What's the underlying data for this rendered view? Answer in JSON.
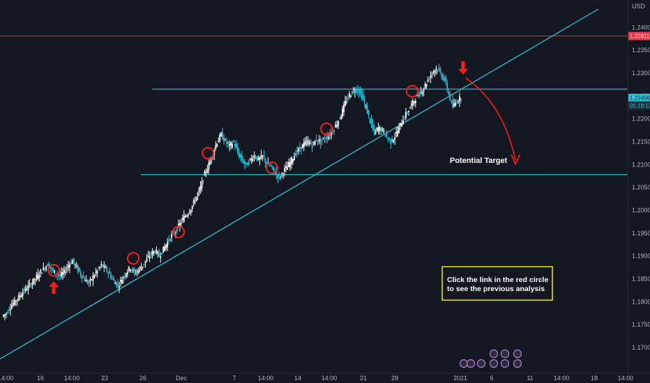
{
  "currency": "USD",
  "colors": {
    "background": "#131722",
    "up_candle": "#ffffff",
    "down_candle": "#26c6da",
    "trendline": "#26c6da",
    "resistance": "#ff1a1a",
    "marker": "#ff1a1a",
    "axis_text": "#b2b5be",
    "note_border": "#f4e41c"
  },
  "chart_data": {
    "type": "candlestick",
    "y_axis": {
      "position": "right",
      "range": [
        1.1665,
        1.244
      ],
      "ticks": [
        "1.24000",
        "1.23500",
        "1.23000",
        "1.22500",
        "1.22000",
        "1.21500",
        "1.21000",
        "1.20500",
        "1.20000",
        "1.19500",
        "1.19000",
        "1.18500",
        "1.18000",
        "1.17500",
        "1.17000"
      ]
    },
    "x_axis": {
      "ticks": [
        "14:00",
        "16",
        "14:00",
        "23",
        "26",
        "Dec",
        "7",
        "14:00",
        "14",
        "14:00",
        "21",
        "28",
        "2021",
        "6",
        "11",
        "14:00",
        "18",
        "14:00"
      ]
    },
    "grid": false,
    "price_labels": [
      {
        "text": "1.23811",
        "value": 1.23811,
        "bg": "#f23645",
        "fg": "#ffffff"
      },
      {
        "text": "1.22456",
        "value": 1.22456,
        "bg": "#26c6da",
        "fg": "#131722"
      },
      {
        "text": "01:18:13",
        "value": 1.2229,
        "bg": "#1e2d3a",
        "fg": "#26c6da"
      }
    ],
    "horizontal_lines": [
      {
        "name": "resistance",
        "value": 1.23811,
        "color": "#ff1a1a",
        "from_date": "chart-start"
      },
      {
        "name": "top-level",
        "value": 1.2265,
        "color": "#26c6da",
        "from_date": "Dec 9"
      },
      {
        "name": "target-level",
        "value": 1.2078,
        "color": "#26c6da",
        "from_date": "Nov 30"
      }
    ],
    "trendline": {
      "color": "#26c6da",
      "points": [
        [
          "chart-start",
          1.1675
        ],
        [
          "Jan 13",
          1.244
        ]
      ]
    },
    "annotations": {
      "target_label": "Potential Target",
      "note_lines": [
        "Click the link in the red circle",
        "to see the previous analysis"
      ]
    },
    "price_path": [
      1.1768,
      1.1775,
      1.179,
      1.18,
      1.181,
      1.1822,
      1.183,
      1.184,
      1.185,
      1.1862,
      1.1872,
      1.1882,
      1.187,
      1.1862,
      1.1856,
      1.1865,
      1.188,
      1.189,
      1.1875,
      1.186,
      1.1848,
      1.184,
      1.1855,
      1.1868,
      1.188,
      1.1872,
      1.186,
      1.1845,
      1.1835,
      1.185,
      1.1865,
      1.1875,
      1.1862,
      1.187,
      1.188,
      1.1893,
      1.1905,
      1.1912,
      1.19,
      1.1915,
      1.193,
      1.1945,
      1.1955,
      1.197,
      1.1985,
      1.1995,
      1.201,
      1.203,
      1.205,
      1.208,
      1.21,
      1.2125,
      1.215,
      1.2165,
      1.215,
      1.214,
      1.215,
      1.2125,
      1.211,
      1.2098,
      1.211,
      1.212,
      1.211,
      1.2118,
      1.2102,
      1.2095,
      1.2082,
      1.2072,
      1.2085,
      1.2095,
      1.211,
      1.2125,
      1.2135,
      1.2145,
      1.215,
      1.2142,
      1.2155,
      1.215,
      1.2158,
      1.2162,
      1.2175,
      1.219,
      1.221,
      1.2235,
      1.2252,
      1.2262,
      1.2265,
      1.225,
      1.2225,
      1.2195,
      1.217,
      1.218,
      1.2175,
      1.216,
      1.215,
      1.2162,
      1.218,
      1.22,
      1.2215,
      1.223,
      1.2245,
      1.2255,
      1.2268,
      1.2285,
      1.2302,
      1.231,
      1.23,
      1.2285,
      1.2255,
      1.2225,
      1.224,
      1.2246
    ]
  }
}
